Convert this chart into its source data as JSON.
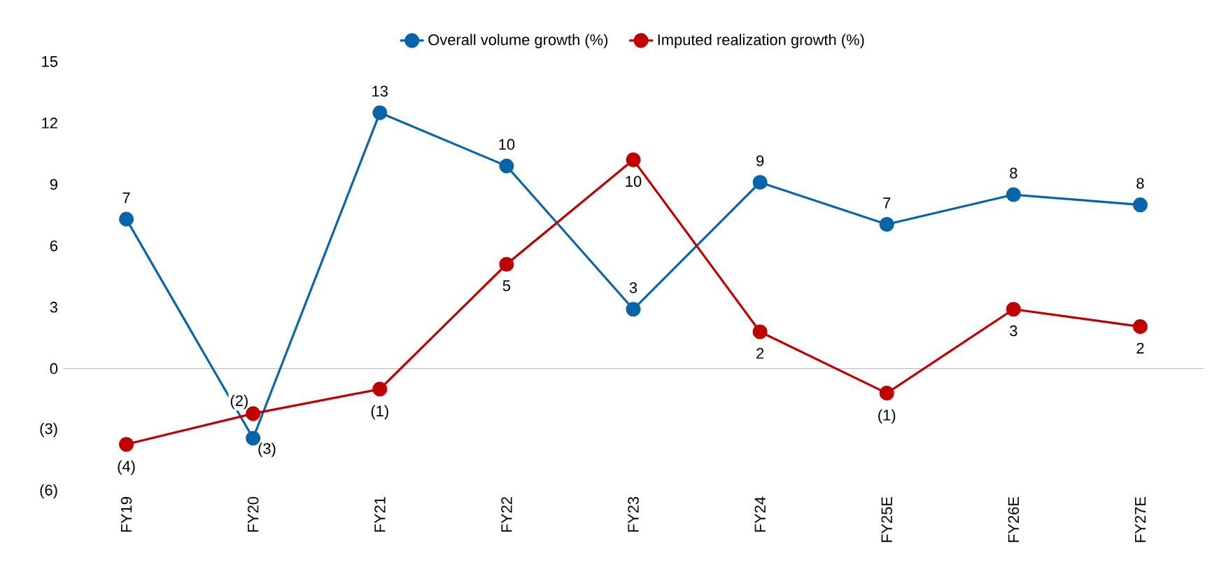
{
  "chart_data": {
    "type": "line",
    "categories": [
      "FY19",
      "FY20",
      "FY21",
      "FY22",
      "FY23",
      "FY24",
      "FY25E",
      "FY26E",
      "FY27E"
    ],
    "series": [
      {
        "name": "Overall volume growth (%)",
        "color": "#0a64a8",
        "values": [
          7.3,
          -3.4,
          12.5,
          9.9,
          2.9,
          9.1,
          7.05,
          8.5,
          8.0
        ],
        "value_labels": [
          "7",
          "(3)",
          "13",
          "10",
          "3",
          "9",
          "7",
          "8",
          "8"
        ]
      },
      {
        "name": "Imputed realization growth (%)",
        "color": "#c00000",
        "values": [
          -3.7,
          -2.2,
          -1.0,
          5.1,
          10.2,
          1.8,
          -1.2,
          2.9,
          2.05
        ],
        "value_labels": [
          "(4)",
          "(2)",
          "(1)",
          "5",
          "10",
          "2",
          "(1)",
          "3",
          "2"
        ]
      }
    ],
    "ylim": [
      -6,
      15
    ],
    "yticks": [
      {
        "value": -6,
        "label": "(6)"
      },
      {
        "value": -3,
        "label": "(3)"
      },
      0,
      3,
      6,
      9,
      12,
      15
    ],
    "ref_lines": [
      {
        "axis": "y",
        "value": 0,
        "color": "#a6a6a6"
      }
    ],
    "marker": "circle",
    "line_style": "solid",
    "grid": false,
    "legend": "top"
  }
}
